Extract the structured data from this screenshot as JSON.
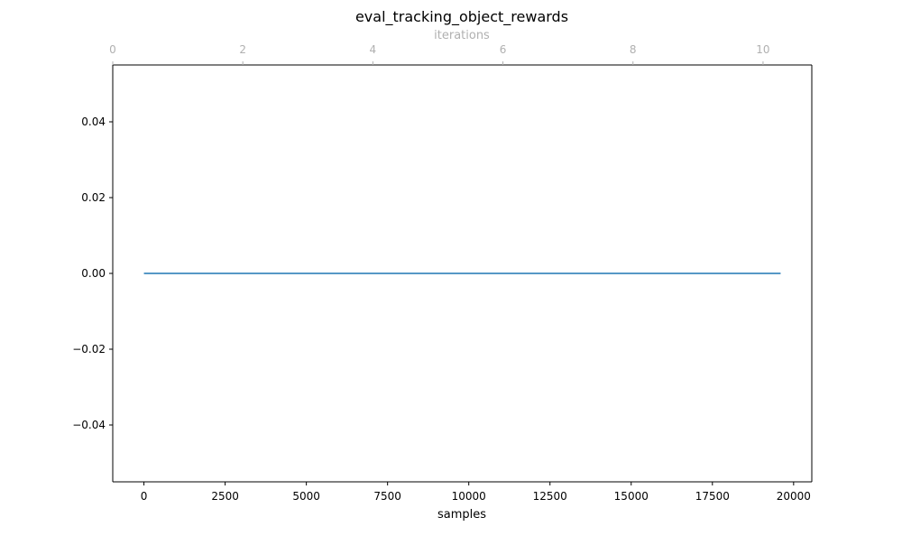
{
  "chart_data": {
    "type": "line",
    "title": "eval_tracking_object_rewards",
    "xlabel": "samples",
    "ylabel": "",
    "secondary_xlabel": "iterations",
    "xlim": [
      -960,
      20560
    ],
    "ylim": [
      -0.055,
      0.055
    ],
    "secondary_xlim": [
      0,
      10.75
    ],
    "x_ticks": [
      0,
      2500,
      5000,
      7500,
      10000,
      12500,
      15000,
      17500,
      20000
    ],
    "x_tick_labels": [
      "0",
      "2500",
      "5000",
      "7500",
      "10000",
      "12500",
      "15000",
      "17500",
      "20000"
    ],
    "y_ticks": [
      -0.04,
      -0.02,
      0.0,
      0.02,
      0.04
    ],
    "y_tick_labels": [
      "−0.04",
      "−0.02",
      "0.00",
      "0.02",
      "0.04"
    ],
    "secondary_x_ticks": [
      0,
      2,
      4,
      6,
      8,
      10
    ],
    "secondary_x_tick_labels": [
      "0",
      "2",
      "4",
      "6",
      "8",
      "10"
    ],
    "grid": false,
    "series": [
      {
        "color": "#1f77b4",
        "x": [
          0,
          19600
        ],
        "y": [
          0.0,
          0.0
        ]
      }
    ],
    "colors": {
      "line": "#1f77b4",
      "axis": "#000000",
      "secondary_axis": "#b0b0b0"
    }
  }
}
